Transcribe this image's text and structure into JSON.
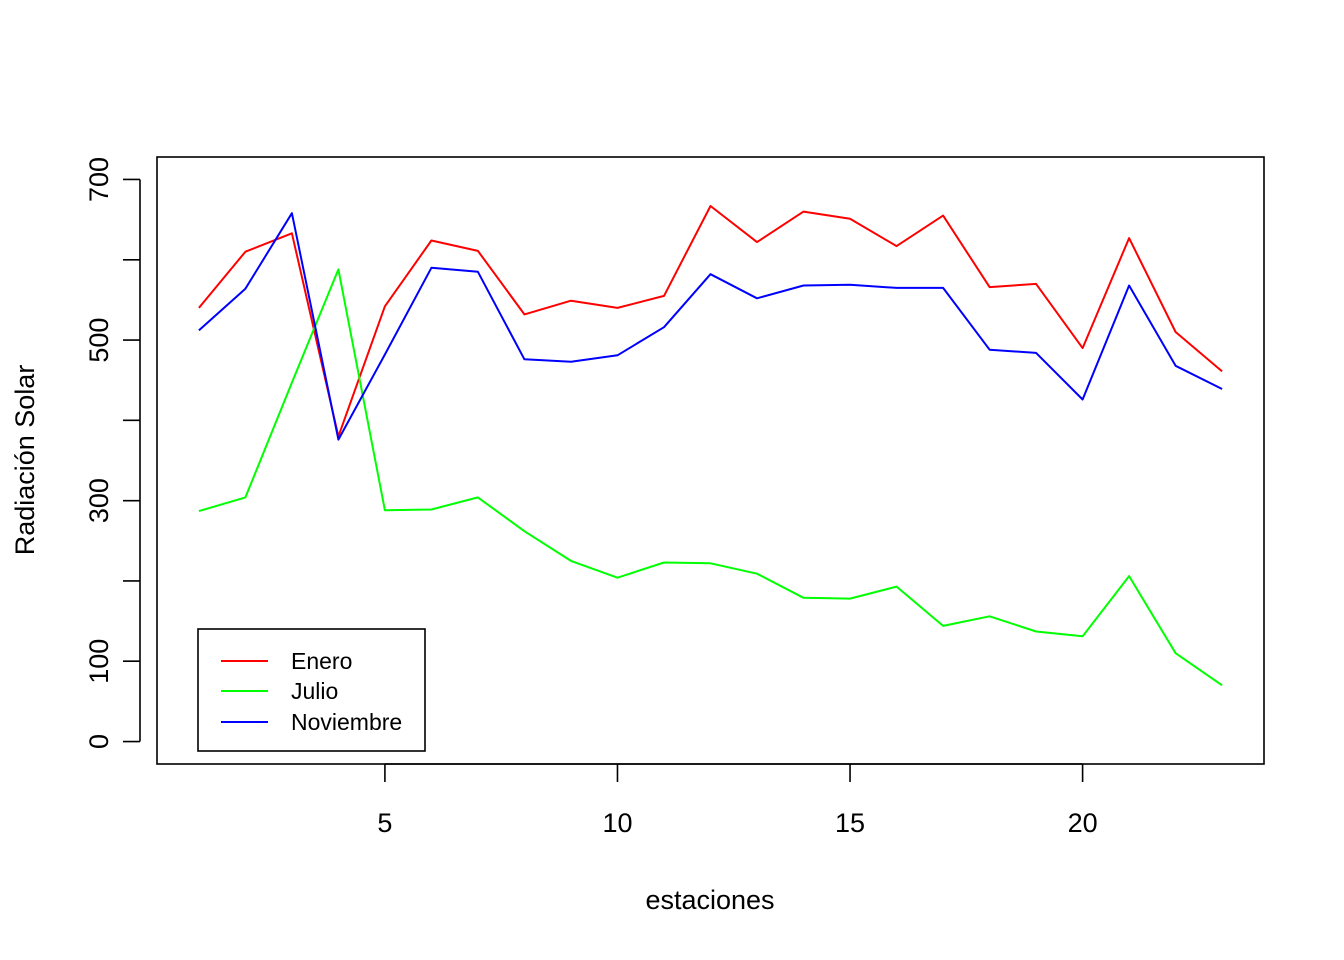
{
  "chart_data": {
    "type": "line",
    "title": "",
    "xlabel": "estaciones",
    "ylabel": "Radiación Solar",
    "xlim": [
      0.1,
      23.9
    ],
    "ylim": [
      -28,
      728
    ],
    "x_ticks": [
      5,
      10,
      15,
      20
    ],
    "y_ticks": [
      0,
      100,
      200,
      300,
      400,
      500,
      600,
      700
    ],
    "y_tick_labels": [
      "0",
      "100",
      "",
      "300",
      "",
      "500",
      "",
      "700"
    ],
    "grid": false,
    "legend_position": "bottom-left",
    "x": [
      1,
      2,
      3,
      4,
      5,
      6,
      7,
      8,
      9,
      10,
      11,
      12,
      13,
      14,
      15,
      16,
      17,
      18,
      19,
      20,
      21,
      22,
      23
    ],
    "series": [
      {
        "name": "Enero",
        "color": "#ff0000",
        "values": [
          540,
          610,
          633,
          380,
          542,
          624,
          611,
          532,
          549,
          540,
          555,
          667,
          622,
          660,
          651,
          617,
          655,
          566,
          570,
          490,
          627,
          510,
          461
        ]
      },
      {
        "name": "Julio",
        "color": "#00ff00",
        "values": [
          287,
          304,
          447,
          588,
          288,
          289,
          304,
          262,
          225,
          204,
          223,
          222,
          209,
          179,
          178,
          193,
          144,
          156,
          137,
          131,
          206,
          110,
          70
        ]
      },
      {
        "name": "Noviembre",
        "color": "#0000ff",
        "values": [
          512,
          564,
          658,
          376,
          482,
          590,
          585,
          476,
          473,
          481,
          516,
          582,
          552,
          568,
          569,
          565,
          565,
          488,
          484,
          426,
          568,
          468,
          439
        ]
      }
    ]
  }
}
